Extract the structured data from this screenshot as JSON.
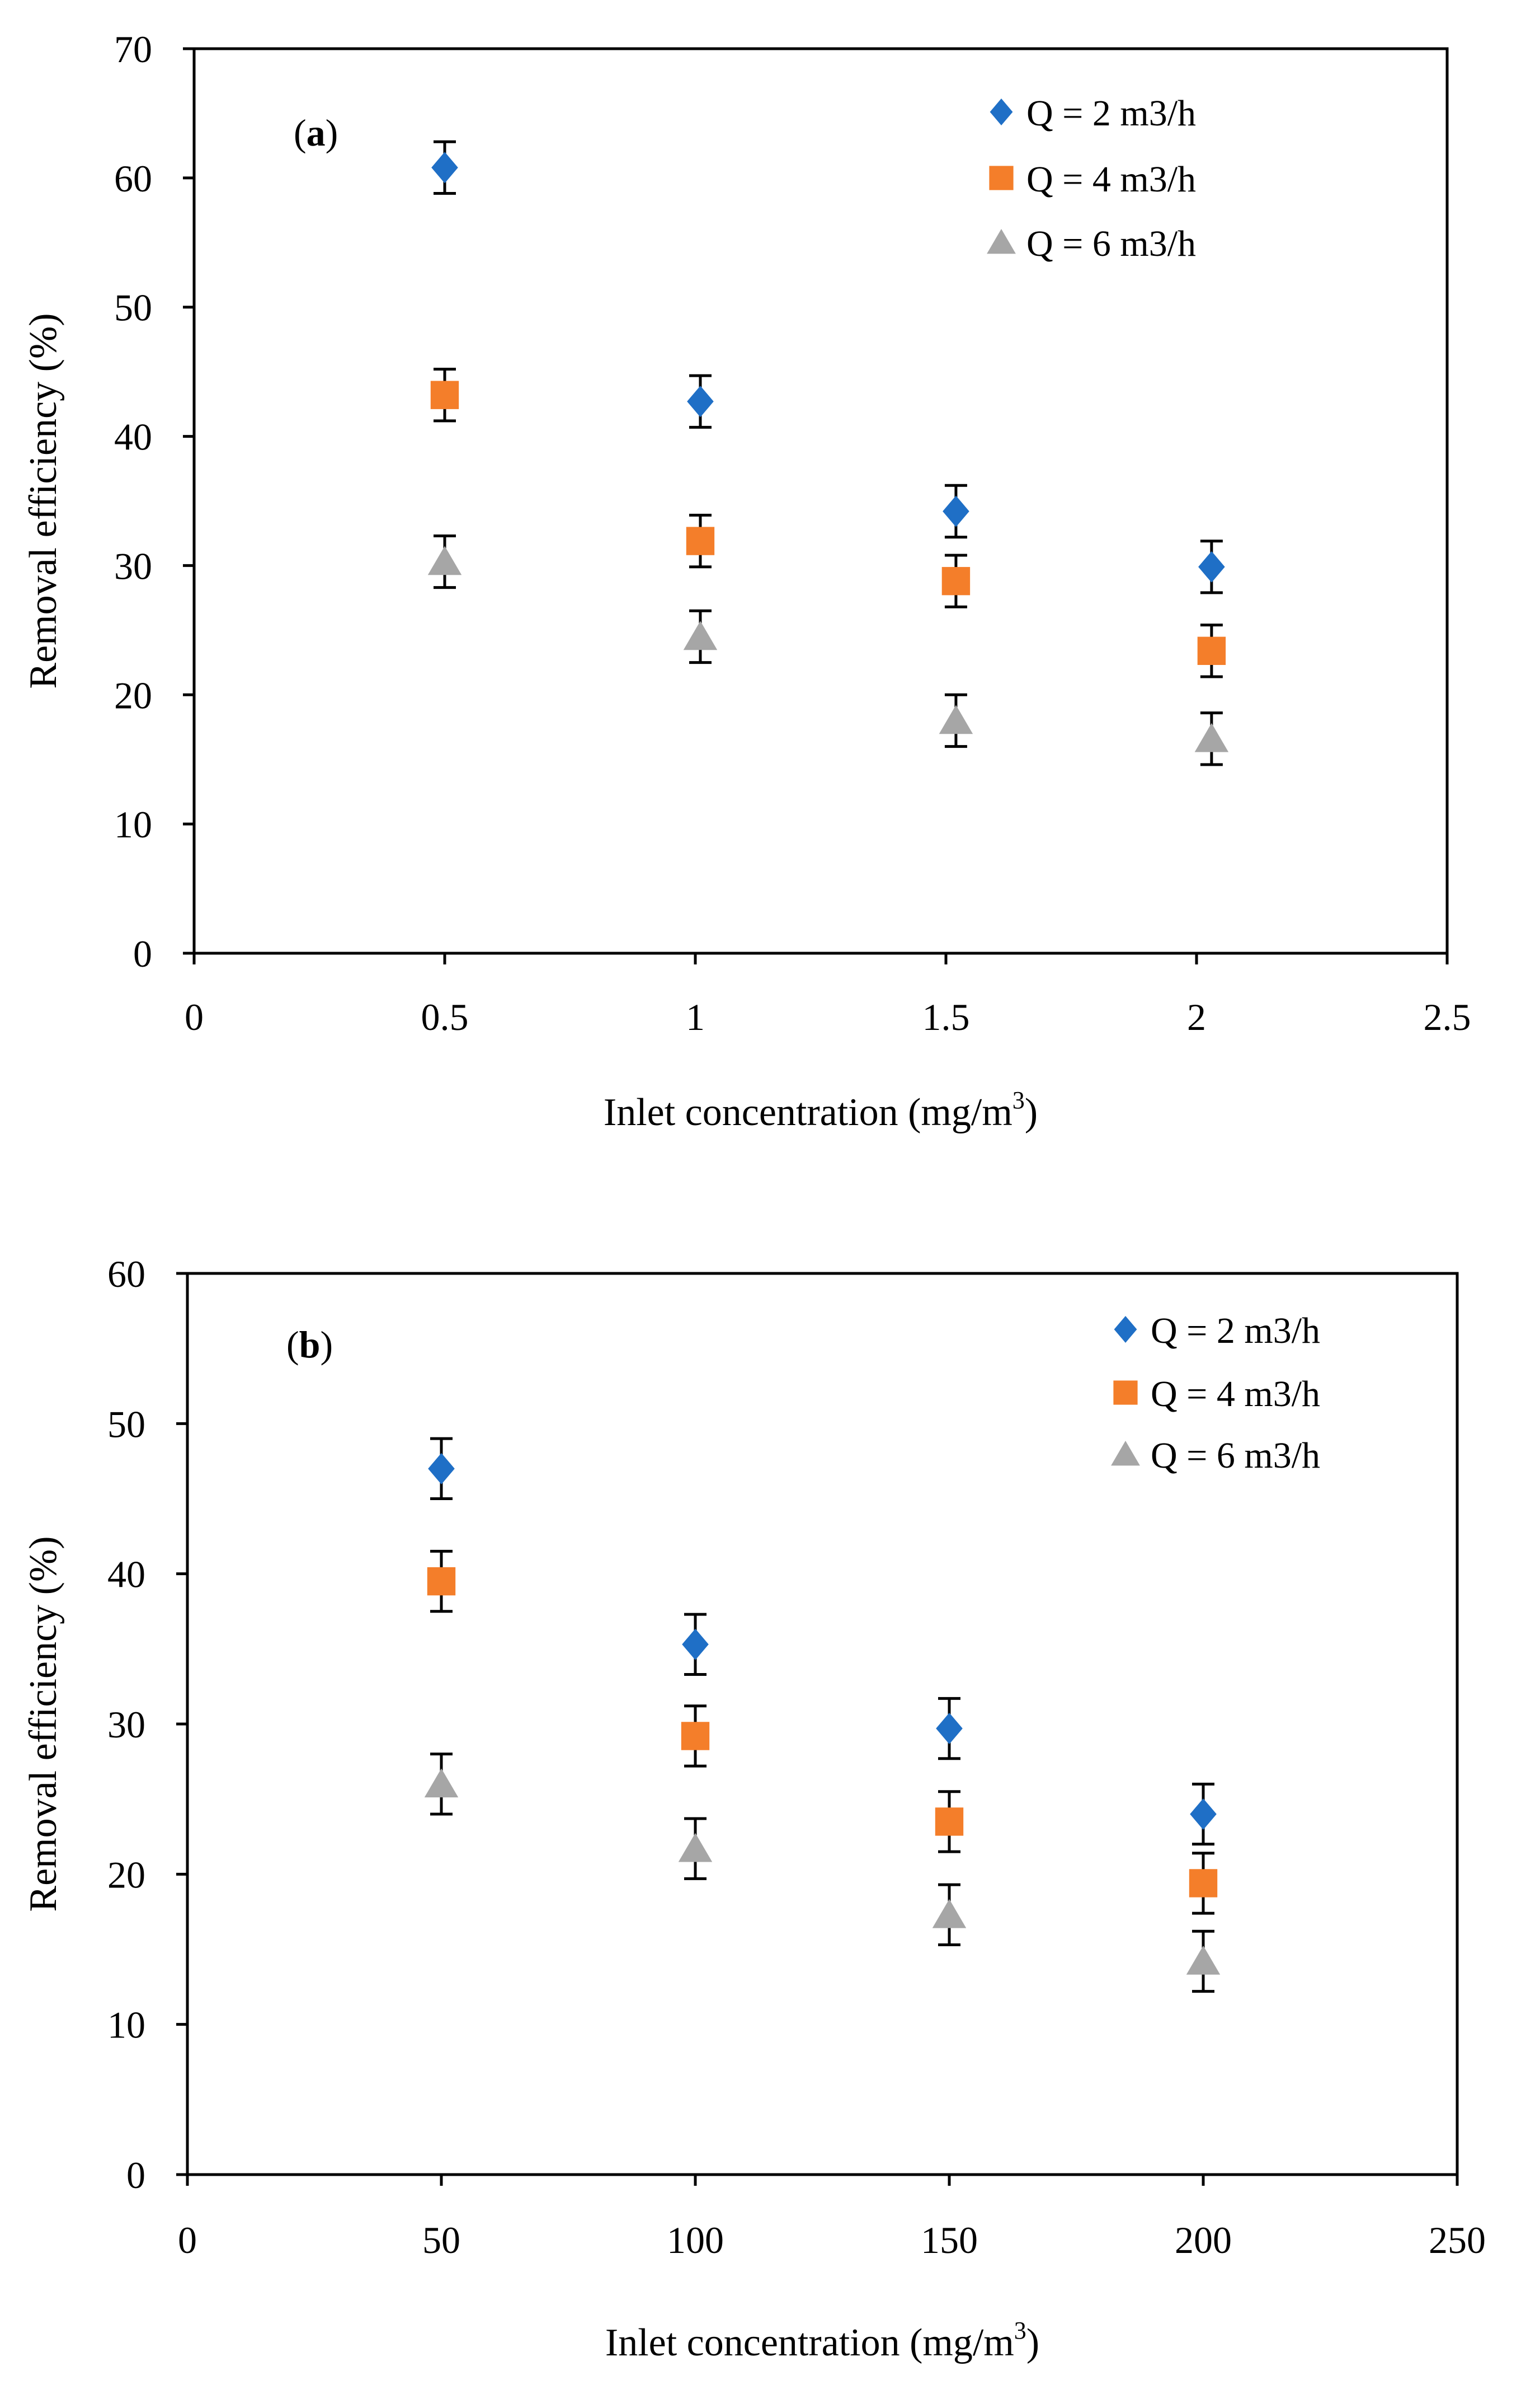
{
  "chart_data": [
    {
      "type": "scatter",
      "panel_label": "a",
      "xlabel": "Inlet concentration (mg/m",
      "xlabel_sup": "3",
      "xlabel_end": ")",
      "ylabel": "Removal efficiency (%)",
      "xlim": [
        0,
        2.5
      ],
      "ylim": [
        0,
        70
      ],
      "x_ticks": [
        0,
        0.5,
        1,
        1.5,
        2,
        2.5
      ],
      "x_tick_labels": [
        "0",
        "0.5",
        "1",
        "1.5",
        "2",
        "2.5"
      ],
      "y_ticks": [
        0,
        10,
        20,
        30,
        40,
        50,
        60,
        70
      ],
      "y_tick_labels": [
        "0",
        "10",
        "20",
        "30",
        "40",
        "50",
        "60",
        "70"
      ],
      "grid": false,
      "legend_position": "top-right",
      "series": [
        {
          "name": "Q = 2 m3/h",
          "marker": "diamond",
          "color": "#1f6fc6",
          "x": [
            0.5,
            1.01,
            1.52,
            2.03
          ],
          "values": [
            60.8,
            42.7,
            34.2,
            29.9
          ],
          "error": [
            2.0,
            2.0,
            2.0,
            2.0
          ]
        },
        {
          "name": "Q = 4 m3/h",
          "marker": "square",
          "color": "#f47e2a",
          "x": [
            0.5,
            1.01,
            1.52,
            2.03
          ],
          "values": [
            43.2,
            31.9,
            28.8,
            23.4
          ],
          "error": [
            2.0,
            2.0,
            2.0,
            2.0
          ]
        },
        {
          "name": "Q = 6 m3/h",
          "marker": "triangle",
          "color": "#a6a6a6",
          "x": [
            0.5,
            1.01,
            1.52,
            2.03
          ],
          "values": [
            30.3,
            24.5,
            18.0,
            16.6
          ],
          "error": [
            2.0,
            2.0,
            2.0,
            2.0
          ]
        }
      ]
    },
    {
      "type": "scatter",
      "panel_label": "b",
      "xlabel": "Inlet concentration (mg/m",
      "xlabel_sup": "3",
      "xlabel_end": ")",
      "ylabel": "Removal efficiency (%)",
      "xlim": [
        0,
        250
      ],
      "ylim": [
        0,
        60
      ],
      "x_ticks": [
        0,
        50,
        100,
        150,
        200,
        250
      ],
      "x_tick_labels": [
        "0",
        "50",
        "100",
        "150",
        "200",
        "250"
      ],
      "y_ticks": [
        0,
        10,
        20,
        30,
        40,
        50,
        60
      ],
      "y_tick_labels": [
        "0",
        "10",
        "20",
        "30",
        "40",
        "50",
        "60"
      ],
      "grid": false,
      "legend_position": "top-right",
      "series": [
        {
          "name": "Q = 2 m3/h",
          "marker": "diamond",
          "color": "#1f6fc6",
          "x": [
            50,
            100,
            150,
            200
          ],
          "values": [
            47.0,
            35.3,
            29.7,
            24.0
          ],
          "error": [
            2.0,
            2.0,
            2.0,
            2.0
          ]
        },
        {
          "name": "Q = 4 m3/h",
          "marker": "square",
          "color": "#f47e2a",
          "x": [
            50,
            100,
            150,
            200
          ],
          "values": [
            39.5,
            29.2,
            23.5,
            19.4
          ],
          "error": [
            2.0,
            2.0,
            2.0,
            2.0
          ]
        },
        {
          "name": "Q = 6 m3/h",
          "marker": "triangle",
          "color": "#a6a6a6",
          "x": [
            50,
            100,
            150,
            200
          ],
          "values": [
            26.0,
            21.7,
            17.3,
            14.2
          ],
          "error": [
            2.0,
            2.0,
            2.0,
            2.0
          ]
        }
      ]
    }
  ]
}
